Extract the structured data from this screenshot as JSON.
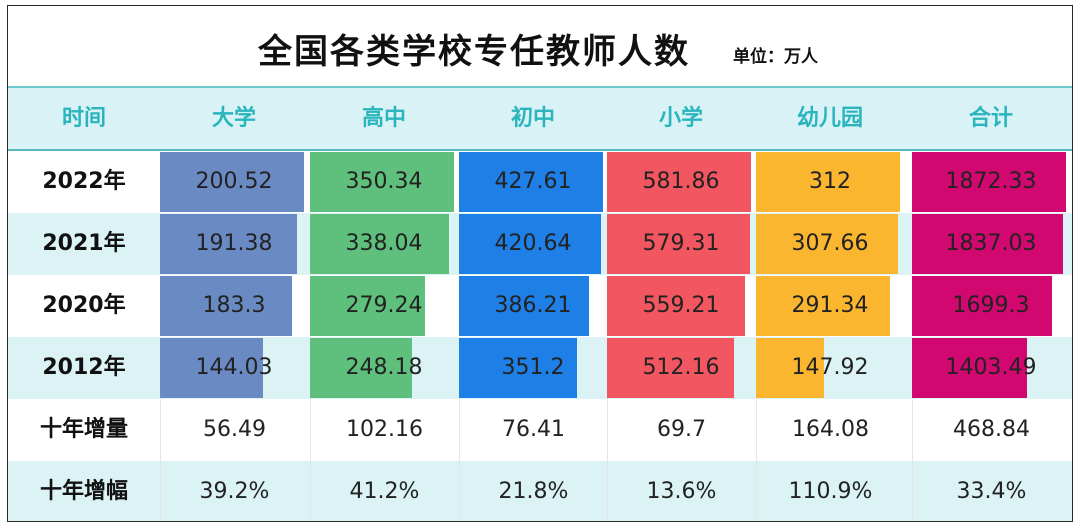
{
  "title": "全国各类学校专任教师人数",
  "unit": "单位：万人",
  "header": {
    "time": "时间"
  },
  "colors": {
    "大学": "#6a8ac4",
    "高中": "#5ec07c",
    "初中": "#1e7fe6",
    "小学": "#f25660",
    "幼儿园": "#fbb630",
    "合计": "#d0086f"
  },
  "chart_data": {
    "type": "table",
    "title": "全国各类学校专任教师人数",
    "unit": "单位：万人",
    "columns": [
      "大学",
      "高中",
      "初中",
      "小学",
      "幼儿园",
      "合计"
    ],
    "rows": [
      {
        "label": "2022年",
        "values": [
          "200.52",
          "350.34",
          "427.61",
          "581.86",
          "312",
          "1872.33"
        ]
      },
      {
        "label": "2021年",
        "values": [
          "191.38",
          "338.04",
          "420.64",
          "579.31",
          "307.66",
          "1837.03"
        ]
      },
      {
        "label": "2020年",
        "values": [
          "183.3",
          "279.24",
          "386.21",
          "559.21",
          "291.34",
          "1699.3"
        ]
      },
      {
        "label": "2012年",
        "values": [
          "144.03",
          "248.18",
          "351.2",
          "512.16",
          "147.92",
          "1403.49"
        ]
      }
    ],
    "summary_rows": [
      {
        "label": "十年增量",
        "values": [
          "56.49",
          "102.16",
          "76.41",
          "69.7",
          "164.08",
          "468.84"
        ]
      },
      {
        "label": "十年增幅",
        "values": [
          "39.2%",
          "41.2%",
          "21.8%",
          "13.6%",
          "110.9%",
          "33.4%"
        ]
      }
    ]
  }
}
